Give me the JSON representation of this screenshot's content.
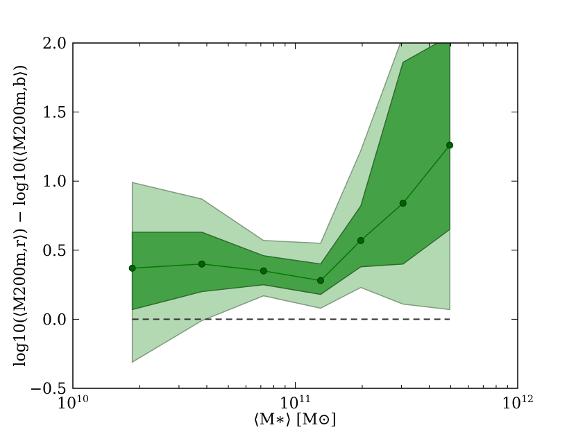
{
  "chart_data": {
    "type": "line",
    "xscale": "log",
    "xlim": [
      10000000000.0,
      1000000000000.0
    ],
    "ylim": [
      -0.5,
      2.0
    ],
    "xlabel": "⟨M∗⟩ [M⊙]",
    "ylabel": "log10(⟨M200m,r⟩) − log10(⟨M200m,b⟩)",
    "grid": false,
    "x_ticks": [
      {
        "base": "10",
        "exp": "10",
        "value": 10000000000.0
      },
      {
        "base": "10",
        "exp": "11",
        "value": 100000000000.0
      },
      {
        "base": "10",
        "exp": "12",
        "value": 1000000000000.0
      }
    ],
    "y_ticks": [
      {
        "label": "−0.5",
        "value": -0.5
      },
      {
        "label": "0.0",
        "value": 0.0
      },
      {
        "label": "0.5",
        "value": 0.5
      },
      {
        "label": "1.0",
        "value": 1.0
      },
      {
        "label": "1.5",
        "value": 1.5
      },
      {
        "label": "2.0",
        "value": 2.0
      }
    ],
    "x": [
      18500000000.0,
      38000000000.0,
      72000000000.0,
      130000000000.0,
      197000000000.0,
      305000000000.0,
      495000000000.0
    ],
    "median": [
      0.37,
      0.4,
      0.35,
      0.28,
      0.57,
      0.84,
      1.26
    ],
    "inner_band": {
      "upper": [
        0.63,
        0.63,
        0.46,
        0.4,
        0.82,
        1.86,
        2.05
      ],
      "lower": [
        0.07,
        0.2,
        0.25,
        0.18,
        0.38,
        0.4,
        0.65
      ]
    },
    "outer_band": {
      "upper": [
        0.99,
        0.87,
        0.57,
        0.55,
        1.22,
        2.05,
        2.05
      ],
      "lower": [
        -0.31,
        -0.01,
        0.17,
        0.08,
        0.23,
        0.11,
        0.07
      ]
    },
    "reference_line": {
      "y": 0.0,
      "x_from": 18500000000.0,
      "x_to": 495000000000.0,
      "style": "dashed"
    },
    "colors": {
      "median": "#007a00",
      "marker": "#006400",
      "inner_band": "#45a145",
      "inner_edge": "#2d6b2d",
      "outer_band": "#b3d9b3",
      "outer_edge": "#7f9a7f",
      "reference": "#333333"
    }
  }
}
